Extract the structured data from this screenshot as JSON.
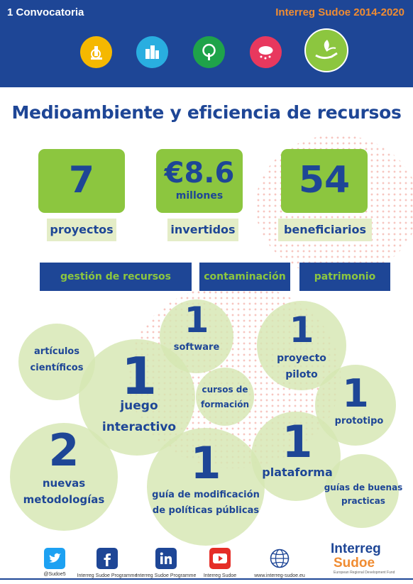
{
  "header": {
    "left_title": "1 Convocatoria",
    "right_title": "Interreg Sudoe 2014-2020",
    "icons": [
      {
        "name": "innovation-icon",
        "color": "#f5b800"
      },
      {
        "name": "competitiveness-icon",
        "color": "#29aee0"
      },
      {
        "name": "low-carbon-icon",
        "color": "#1fa34a"
      },
      {
        "name": "risk-prevention-icon",
        "color": "#e8385e"
      },
      {
        "name": "environment-icon",
        "color": "#8cc63f"
      }
    ]
  },
  "title": "Medioambiente y eficiencia de recursos",
  "stats": [
    {
      "value": "7",
      "sub": "",
      "label": "proyectos"
    },
    {
      "value": "€8.6",
      "sub": "millones",
      "label": "invertidos"
    },
    {
      "value": "54",
      "sub": "",
      "label": "beneficiarios"
    }
  ],
  "topics": [
    "gestión de recursos",
    "contaminación",
    "patrimonio"
  ],
  "outputs": {
    "articulos": {
      "number": "",
      "line1": "artículos",
      "line2": "científicos"
    },
    "software": {
      "number": "1",
      "line1": "software",
      "line2": ""
    },
    "proyecto": {
      "number": "1",
      "line1": "proyecto",
      "line2": "piloto"
    },
    "juego": {
      "number": "1",
      "line1": "juego",
      "line2": "interactivo"
    },
    "cursos": {
      "number": "",
      "line1": "cursos de",
      "line2": "formación"
    },
    "prototipo": {
      "number": "1",
      "line1": "prototipo",
      "line2": ""
    },
    "metodologias": {
      "number": "2",
      "line1": "nuevas",
      "line2": "metodologías"
    },
    "guia": {
      "number": "1",
      "line1": "guía de modificación",
      "line2": "de políticas públicas"
    },
    "plataforma": {
      "number": "1",
      "line1": "plataforma",
      "line2": ""
    },
    "guias_buenas": {
      "number": "",
      "line1": "guías de buenas",
      "line2": "practicas"
    }
  },
  "footer": {
    "twitter": "@Sudoe5",
    "facebook": "Interreg Sudoe Programme",
    "linkedin": "Interreg Sudoe Programme",
    "youtube": "Interreg Sudoe",
    "web": "www.interreg-sudoe.eu",
    "logo_line1": "Interreg",
    "logo_line2": "Sudoe",
    "logo_tag": "European Regional Development Fund"
  },
  "colors": {
    "navy": "#1e4696",
    "green": "#8cc63f",
    "orange": "#f08c32",
    "pale_green": "#d6e6b2"
  }
}
